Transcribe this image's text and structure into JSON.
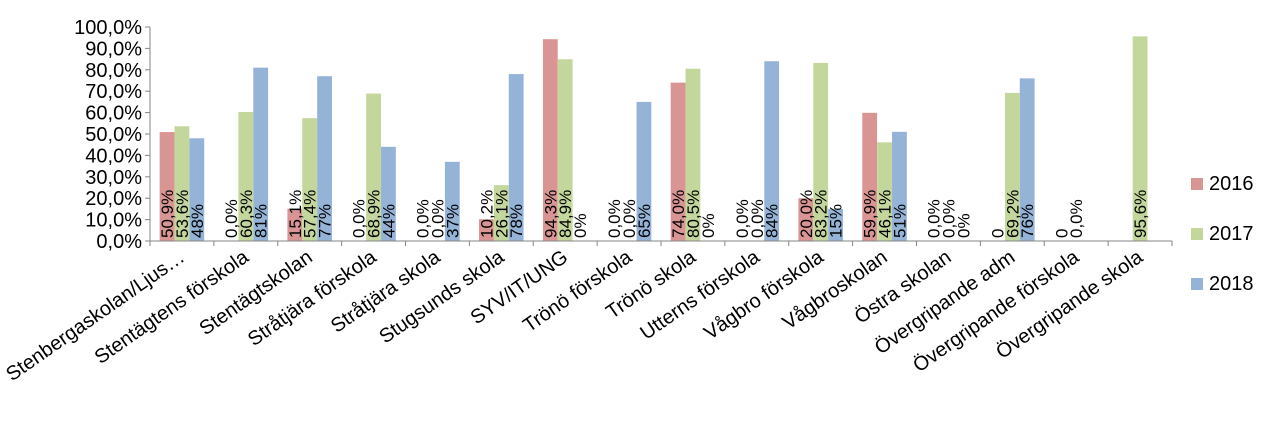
{
  "chart_data": {
    "type": "bar",
    "categories": [
      "Stenbergaskolan/Ljus…",
      "Stentägtens förskola",
      "Stentägtskolan",
      "Stråtjära förskola",
      "Stråtjära skola",
      "Stugsunds skola",
      "SYV/IT/UNG",
      "Trönö förskola",
      "Trönö skola",
      "Utterns förskola",
      "Vågbro förskola",
      "Vågbroskolan",
      "Östra skolan",
      "Övergripande adm",
      "Övergripande förskola",
      "Övergripande skola"
    ],
    "ylim": [
      0,
      100
    ],
    "yticks": [
      "0,0%",
      "10,0%",
      "20,0%",
      "30,0%",
      "40,0%",
      "50,0%",
      "60,0%",
      "70,0%",
      "80,0%",
      "90,0%",
      "100,0%"
    ],
    "legend_position": "right",
    "series": [
      {
        "name": "2016",
        "color": "#d99594",
        "values": [
          50.9,
          0,
          15.1,
          0,
          0,
          10.2,
          94.3,
          0,
          74.0,
          0,
          20.0,
          59.9,
          0,
          0,
          0,
          null
        ],
        "labels": [
          "50,9%",
          "0,0%",
          "15,1%",
          "0,0%",
          "0,0%",
          "10,2%",
          "94,3%",
          "0,0%",
          "74,0%",
          "0,0%",
          "20,0%",
          "59,9%",
          "0,0%",
          "0",
          "0",
          ""
        ]
      },
      {
        "name": "2017",
        "color": "#c3d69b",
        "values": [
          53.6,
          60.3,
          57.4,
          68.9,
          0,
          26.1,
          84.9,
          0,
          80.5,
          0,
          83.2,
          46.1,
          0,
          69.2,
          0,
          95.6
        ],
        "labels": [
          "53,6%",
          "60,3%",
          "57,4%",
          "68,9%",
          "0,0%",
          "26,1%",
          "84,9%",
          "0,0%",
          "80,5%",
          "0,0%",
          "83,2%",
          "46,1%",
          "0,0%",
          "69,2%",
          "0,0%",
          "95,6%"
        ]
      },
      {
        "name": "2018",
        "color": "#95b3d7",
        "values": [
          48,
          81,
          77,
          44,
          37,
          78,
          0,
          65,
          0,
          84,
          15,
          51,
          0,
          76,
          null,
          null
        ],
        "labels": [
          "48%",
          "81%",
          "77%",
          "44%",
          "37%",
          "78%",
          "0%",
          "65%",
          "0%",
          "84%",
          "15%",
          "51%",
          "0%",
          "76%",
          "",
          ""
        ]
      }
    ]
  }
}
